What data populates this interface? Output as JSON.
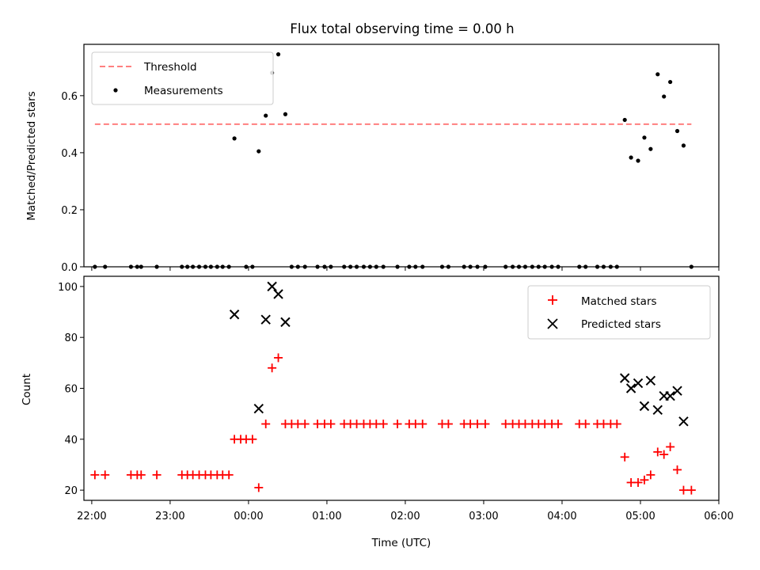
{
  "chart_data": [
    {
      "type": "scatter",
      "title": "Flux total observing time = 0.00 h",
      "ylabel": "Matched/Predicted stars",
      "xlabel": "",
      "xlim": [
        21.9,
        30.0
      ],
      "ylim": [
        0.0,
        0.78
      ],
      "yticks": [
        "0.0",
        "0.2",
        "0.4",
        "0.6"
      ],
      "ytick_values": [
        0.0,
        0.2,
        0.4,
        0.6
      ],
      "legend_position": "upper-left",
      "threshold": {
        "name": "Threshold",
        "y": 0.5,
        "x": [
          22.04,
          29.65
        ],
        "color": "#ff7f7f"
      },
      "series": [
        {
          "name": "Measurements",
          "color": "#000000",
          "points": [
            [
              22.04,
              0
            ],
            [
              22.17,
              0
            ],
            [
              22.5,
              0
            ],
            [
              22.58,
              0
            ],
            [
              22.63,
              0
            ],
            [
              22.83,
              0
            ],
            [
              23.15,
              0
            ],
            [
              23.22,
              0
            ],
            [
              23.29,
              0
            ],
            [
              23.37,
              0
            ],
            [
              23.45,
              0
            ],
            [
              23.52,
              0
            ],
            [
              23.6,
              0
            ],
            [
              23.67,
              0
            ],
            [
              23.75,
              0
            ],
            [
              23.82,
              0.45
            ],
            [
              23.97,
              0
            ],
            [
              24.05,
              0
            ],
            [
              24.13,
              0.405
            ],
            [
              24.22,
              0.53
            ],
            [
              24.3,
              0.68
            ],
            [
              24.38,
              0.745
            ],
            [
              24.47,
              0.535
            ],
            [
              24.55,
              0
            ],
            [
              24.63,
              0
            ],
            [
              24.72,
              0
            ],
            [
              24.88,
              0
            ],
            [
              24.97,
              0
            ],
            [
              25.05,
              0
            ],
            [
              25.22,
              0
            ],
            [
              25.3,
              0
            ],
            [
              25.38,
              0
            ],
            [
              25.47,
              0
            ],
            [
              25.55,
              0
            ],
            [
              25.63,
              0
            ],
            [
              25.72,
              0
            ],
            [
              25.9,
              0
            ],
            [
              26.05,
              0
            ],
            [
              26.13,
              0
            ],
            [
              26.22,
              0
            ],
            [
              26.47,
              0
            ],
            [
              26.55,
              0
            ],
            [
              26.75,
              0
            ],
            [
              26.83,
              0
            ],
            [
              26.92,
              0
            ],
            [
              27.02,
              0
            ],
            [
              27.28,
              0
            ],
            [
              27.37,
              0
            ],
            [
              27.45,
              0
            ],
            [
              27.53,
              0
            ],
            [
              27.62,
              0
            ],
            [
              27.7,
              0
            ],
            [
              27.78,
              0
            ],
            [
              27.87,
              0
            ],
            [
              27.95,
              0
            ],
            [
              28.22,
              0
            ],
            [
              28.3,
              0
            ],
            [
              28.45,
              0
            ],
            [
              28.53,
              0
            ],
            [
              28.62,
              0
            ],
            [
              28.7,
              0
            ],
            [
              28.8,
              0.515
            ],
            [
              28.88,
              0.383
            ],
            [
              28.97,
              0.372
            ],
            [
              29.05,
              0.453
            ],
            [
              29.13,
              0.413
            ],
            [
              29.22,
              0.675
            ],
            [
              29.3,
              0.597
            ],
            [
              29.38,
              0.648
            ],
            [
              29.47,
              0.476
            ],
            [
              29.55,
              0.425
            ],
            [
              29.65,
              0
            ]
          ]
        }
      ]
    },
    {
      "type": "scatter",
      "xlabel": "Time (UTC)",
      "ylabel": "Count",
      "xlim": [
        21.9,
        30.0
      ],
      "ylim": [
        16,
        104
      ],
      "xticks": [
        "22:00",
        "23:00",
        "00:00",
        "01:00",
        "02:00",
        "03:00",
        "04:00",
        "05:00",
        "06:00"
      ],
      "xtick_values": [
        22,
        23,
        24,
        25,
        26,
        27,
        28,
        29,
        30
      ],
      "yticks": [
        "20",
        "40",
        "60",
        "80",
        "100"
      ],
      "ytick_values": [
        20,
        40,
        60,
        80,
        100
      ],
      "legend_position": "upper-right",
      "series": [
        {
          "name": "Matched stars",
          "marker": "plus",
          "color": "#ff0000",
          "points": [
            [
              22.04,
              26
            ],
            [
              22.17,
              26
            ],
            [
              22.5,
              26
            ],
            [
              22.58,
              26
            ],
            [
              22.63,
              26
            ],
            [
              22.83,
              26
            ],
            [
              23.15,
              26
            ],
            [
              23.22,
              26
            ],
            [
              23.29,
              26
            ],
            [
              23.37,
              26
            ],
            [
              23.45,
              26
            ],
            [
              23.52,
              26
            ],
            [
              23.6,
              26
            ],
            [
              23.67,
              26
            ],
            [
              23.75,
              26
            ],
            [
              23.82,
              40
            ],
            [
              23.9,
              40
            ],
            [
              23.97,
              40
            ],
            [
              24.05,
              40
            ],
            [
              24.13,
              21
            ],
            [
              24.22,
              46
            ],
            [
              24.3,
              68
            ],
            [
              24.38,
              72
            ],
            [
              24.47,
              46
            ],
            [
              24.55,
              46
            ],
            [
              24.63,
              46
            ],
            [
              24.72,
              46
            ],
            [
              24.88,
              46
            ],
            [
              24.97,
              46
            ],
            [
              25.05,
              46
            ],
            [
              25.22,
              46
            ],
            [
              25.3,
              46
            ],
            [
              25.38,
              46
            ],
            [
              25.47,
              46
            ],
            [
              25.55,
              46
            ],
            [
              25.63,
              46
            ],
            [
              25.72,
              46
            ],
            [
              25.9,
              46
            ],
            [
              26.05,
              46
            ],
            [
              26.13,
              46
            ],
            [
              26.22,
              46
            ],
            [
              26.47,
              46
            ],
            [
              26.55,
              46
            ],
            [
              26.75,
              46
            ],
            [
              26.83,
              46
            ],
            [
              26.92,
              46
            ],
            [
              27.02,
              46
            ],
            [
              27.28,
              46
            ],
            [
              27.37,
              46
            ],
            [
              27.45,
              46
            ],
            [
              27.53,
              46
            ],
            [
              27.62,
              46
            ],
            [
              27.7,
              46
            ],
            [
              27.78,
              46
            ],
            [
              27.87,
              46
            ],
            [
              27.95,
              46
            ],
            [
              28.22,
              46
            ],
            [
              28.3,
              46
            ],
            [
              28.45,
              46
            ],
            [
              28.53,
              46
            ],
            [
              28.62,
              46
            ],
            [
              28.7,
              46
            ],
            [
              28.8,
              33
            ],
            [
              28.88,
              23
            ],
            [
              28.97,
              23
            ],
            [
              29.05,
              24
            ],
            [
              29.13,
              26
            ],
            [
              29.22,
              35
            ],
            [
              29.3,
              34
            ],
            [
              29.38,
              37
            ],
            [
              29.47,
              28
            ],
            [
              29.55,
              20
            ],
            [
              29.65,
              20
            ]
          ]
        },
        {
          "name": "Predicted stars",
          "marker": "x",
          "color": "#000000",
          "points": [
            [
              23.82,
              89
            ],
            [
              24.13,
              52
            ],
            [
              24.22,
              87
            ],
            [
              24.3,
              100
            ],
            [
              24.38,
              97
            ],
            [
              24.47,
              86
            ],
            [
              28.8,
              64
            ],
            [
              28.88,
              60
            ],
            [
              28.97,
              62
            ],
            [
              29.05,
              53
            ],
            [
              29.13,
              63
            ],
            [
              29.22,
              51.5
            ],
            [
              29.3,
              57
            ],
            [
              29.38,
              57
            ],
            [
              29.47,
              59
            ],
            [
              29.55,
              47
            ]
          ]
        }
      ]
    }
  ]
}
